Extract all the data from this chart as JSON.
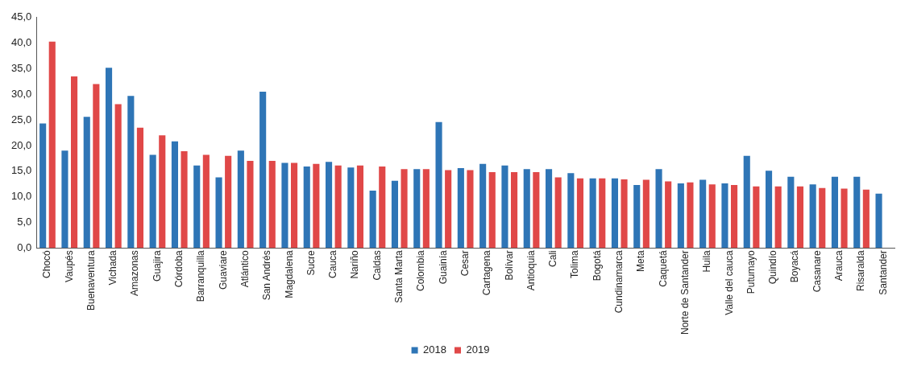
{
  "chart_data": {
    "type": "bar",
    "categories": [
      "Chocó",
      "Vaupés",
      "Buenaventura",
      "Vichada",
      "Amazonas",
      "Guajira",
      "Córdoba",
      "Barranquilla",
      "Guaviare",
      "Atlántico",
      "San Andrés",
      "Magdalena",
      "Sucre",
      "Cauca",
      "Nariño",
      "Caldas",
      "Santa Marta",
      "Colombia",
      "Guainía",
      "Cesar",
      "Cartagena",
      "Bolívar",
      "Antioquia",
      "Cali",
      "Tolima",
      "Bogotá",
      "Cundinamarca",
      "Meta",
      "Caquetá",
      "Norte de Santander",
      "Huila",
      "Valle del cauca",
      "Putumayo",
      "Quindío",
      "Boyacá",
      "Casanare",
      "Arauca",
      "Risaralda",
      "Santander"
    ],
    "series": [
      {
        "name": "2018",
        "color": "#2e75b6",
        "values": [
          24.3,
          19.0,
          25.6,
          35.2,
          29.7,
          18.2,
          20.8,
          16.1,
          13.8,
          19.0,
          30.5,
          16.6,
          15.9,
          16.8,
          15.7,
          11.2,
          13.1,
          15.4,
          24.6,
          15.6,
          16.4,
          16.1,
          15.4,
          15.4,
          14.6,
          13.6,
          13.6,
          12.3,
          15.4,
          12.6,
          13.3,
          12.6,
          18.0,
          15.1,
          13.9,
          12.4,
          13.9,
          13.9,
          10.6
        ]
      },
      {
        "name": "2019",
        "color": "#e04848",
        "values": [
          40.3,
          33.5,
          32.0,
          28.1,
          23.5,
          22.0,
          18.9,
          18.2,
          18.0,
          17.0,
          17.0,
          16.6,
          16.4,
          16.1,
          16.1,
          15.9,
          15.4,
          15.4,
          15.2,
          15.2,
          14.8,
          14.8,
          14.8,
          13.8,
          13.6,
          13.6,
          13.4,
          13.3,
          13.0,
          12.8,
          12.4,
          12.3,
          12.0,
          12.0,
          12.0,
          11.7,
          11.6,
          11.4,
          null
        ]
      }
    ],
    "ylim": [
      0,
      45
    ],
    "yticks": [
      {
        "value": 0,
        "label": "0,0"
      },
      {
        "value": 5,
        "label": "5,0"
      },
      {
        "value": 10,
        "label": "10,0"
      },
      {
        "value": 15,
        "label": "15,0"
      },
      {
        "value": 20,
        "label": "20,0"
      },
      {
        "value": 25,
        "label": "25,0"
      },
      {
        "value": 30,
        "label": "30,0"
      },
      {
        "value": 35,
        "label": "35,0"
      },
      {
        "value": 40,
        "label": "40,0"
      },
      {
        "value": 45,
        "label": "45,0"
      }
    ],
    "grid": false,
    "legend": "bottom"
  }
}
